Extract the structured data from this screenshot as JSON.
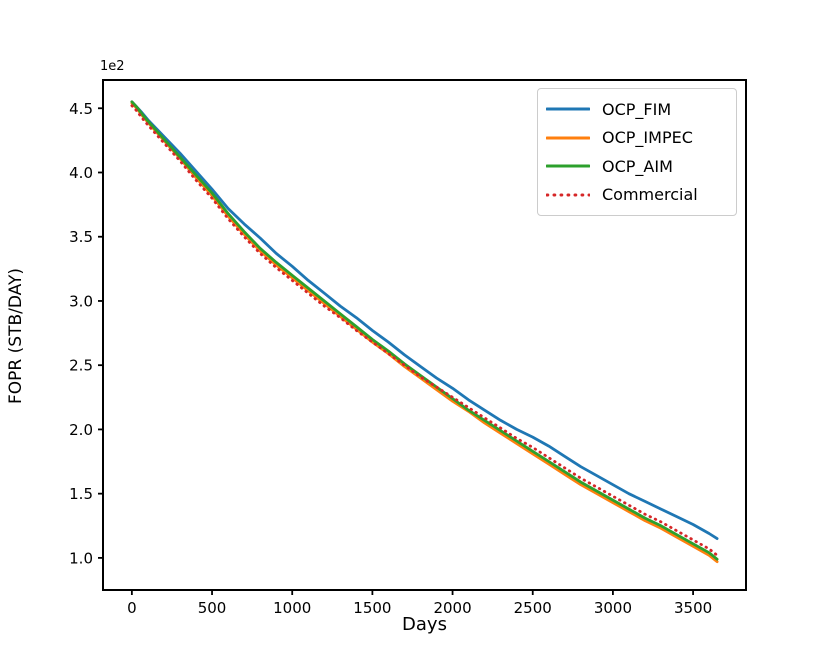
{
  "figure": {
    "background": "#ffffff",
    "axis_color": "#000000",
    "legend_border_color": "#cccccc"
  },
  "chart_data": {
    "type": "line",
    "title": "",
    "xlabel": "Days",
    "ylabel": "FOPR (STB/DAY)",
    "y_axis_offset_text": "1e2",
    "grid": false,
    "legend_position": "upper right",
    "xlim": [
      -180,
      3830
    ],
    "ylim": [
      75,
      472
    ],
    "x_ticks": [
      0,
      500,
      1000,
      1500,
      2000,
      2500,
      3000,
      3500
    ],
    "x_tick_labels": [
      "0",
      "500",
      "1000",
      "1500",
      "2000",
      "2500",
      "3000",
      "3500"
    ],
    "y_ticks": [
      450,
      400,
      350,
      300,
      250,
      200,
      150,
      100
    ],
    "y_tick_labels": [
      "4.5",
      "4.0",
      "3.5",
      "3.0",
      "2.5",
      "2.0",
      "1.5",
      "1.0"
    ],
    "x_units": "days",
    "y_units": "STB/DAY",
    "x": [
      0,
      30,
      60,
      100,
      200,
      300,
      400,
      500,
      600,
      700,
      800,
      900,
      1000,
      1100,
      1200,
      1300,
      1400,
      1500,
      1600,
      1700,
      1800,
      1900,
      2000,
      2100,
      2200,
      2300,
      2400,
      2500,
      2600,
      2700,
      2800,
      2900,
      3000,
      3100,
      3200,
      3300,
      3400,
      3500,
      3600,
      3650
    ],
    "series": [
      {
        "name": "OCP_FIM",
        "color": "#1f77b4",
        "style": "solid",
        "values": [
          455,
          451,
          447,
          441,
          428,
          415,
          401,
          387,
          372,
          360,
          349,
          337,
          327,
          316,
          306,
          296,
          287,
          277,
          268,
          258,
          249,
          240,
          232,
          223,
          215,
          207,
          200,
          194,
          187,
          179,
          171,
          164,
          157,
          150,
          144,
          138,
          132,
          126,
          119,
          115
        ]
      },
      {
        "name": "OCP_IMPEC",
        "color": "#ff7f0e",
        "style": "solid",
        "values": [
          454,
          450,
          445,
          439,
          425,
          411,
          396,
          382,
          366,
          352,
          339,
          328,
          318,
          308,
          298,
          288,
          278,
          268,
          259,
          249,
          240,
          231,
          222,
          214,
          205,
          197,
          189,
          181,
          173,
          165,
          157,
          150,
          143,
          136,
          129,
          123,
          116,
          109,
          102,
          97
        ]
      },
      {
        "name": "OCP_AIM",
        "color": "#2ca02c",
        "style": "solid",
        "values": [
          455,
          451,
          446,
          440,
          426,
          412,
          398,
          384,
          368,
          354,
          341,
          330,
          320,
          310,
          300,
          290,
          280,
          270,
          261,
          251,
          242,
          233,
          224,
          215,
          207,
          199,
          191,
          183,
          175,
          167,
          159,
          152,
          145,
          138,
          131,
          125,
          118,
          111,
          104,
          99
        ]
      },
      {
        "name": "Commercial",
        "color": "#d62728",
        "style": "dotted",
        "values": [
          452,
          448,
          443,
          437,
          423,
          409,
          394,
          380,
          364,
          350,
          337,
          326,
          316,
          306,
          296,
          287,
          277,
          268,
          259,
          250,
          241,
          233,
          225,
          217,
          209,
          201,
          193,
          186,
          178,
          170,
          162,
          155,
          148,
          141,
          134,
          128,
          121,
          114,
          107,
          102
        ]
      }
    ]
  }
}
